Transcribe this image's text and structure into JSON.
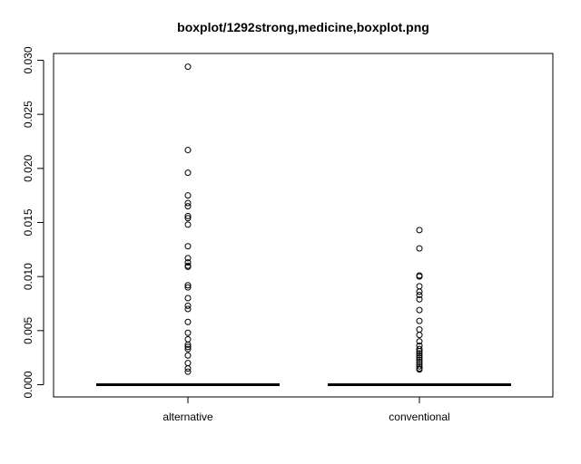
{
  "chart_data": {
    "type": "boxplot",
    "title": "boxplot/1292strong,medicine,boxplot.png",
    "xlabel": "",
    "ylabel": "",
    "categories": [
      "alternative",
      "conventional"
    ],
    "ylim": [
      -0.001,
      0.0306
    ],
    "yticks": [
      0.0,
      0.005,
      0.01,
      0.015,
      0.02,
      0.025,
      0.03
    ],
    "ytick_labels": [
      "0.000",
      "0.005",
      "0.010",
      "0.015",
      "0.020",
      "0.025",
      "0.030"
    ],
    "grid": false,
    "series": [
      {
        "category": "alternative",
        "min": 0,
        "q1": 0,
        "median": 0,
        "q3": 0,
        "max": 0,
        "outliers": [
          0.0294,
          0.0217,
          0.0196,
          0.0175,
          0.0168,
          0.0165,
          0.0156,
          0.0154,
          0.0148,
          0.0128,
          0.0117,
          0.0113,
          0.011,
          0.0109,
          0.0092,
          0.009,
          0.008,
          0.0073,
          0.007,
          0.0058,
          0.0048,
          0.0042,
          0.0037,
          0.0035,
          0.0033,
          0.0027,
          0.002,
          0.0015,
          0.0012
        ]
      },
      {
        "category": "conventional",
        "min": 0,
        "q1": 0,
        "median": 0,
        "q3": 0,
        "max": 0,
        "outliers": [
          0.0143,
          0.0126,
          0.0101,
          0.01,
          0.0091,
          0.0086,
          0.0083,
          0.0079,
          0.0069,
          0.0059,
          0.0051,
          0.0046,
          0.004,
          0.0036,
          0.0033,
          0.0031,
          0.0029,
          0.0027,
          0.0025,
          0.0023,
          0.0021,
          0.0019,
          0.0017,
          0.0015,
          0.0014
        ]
      }
    ]
  }
}
